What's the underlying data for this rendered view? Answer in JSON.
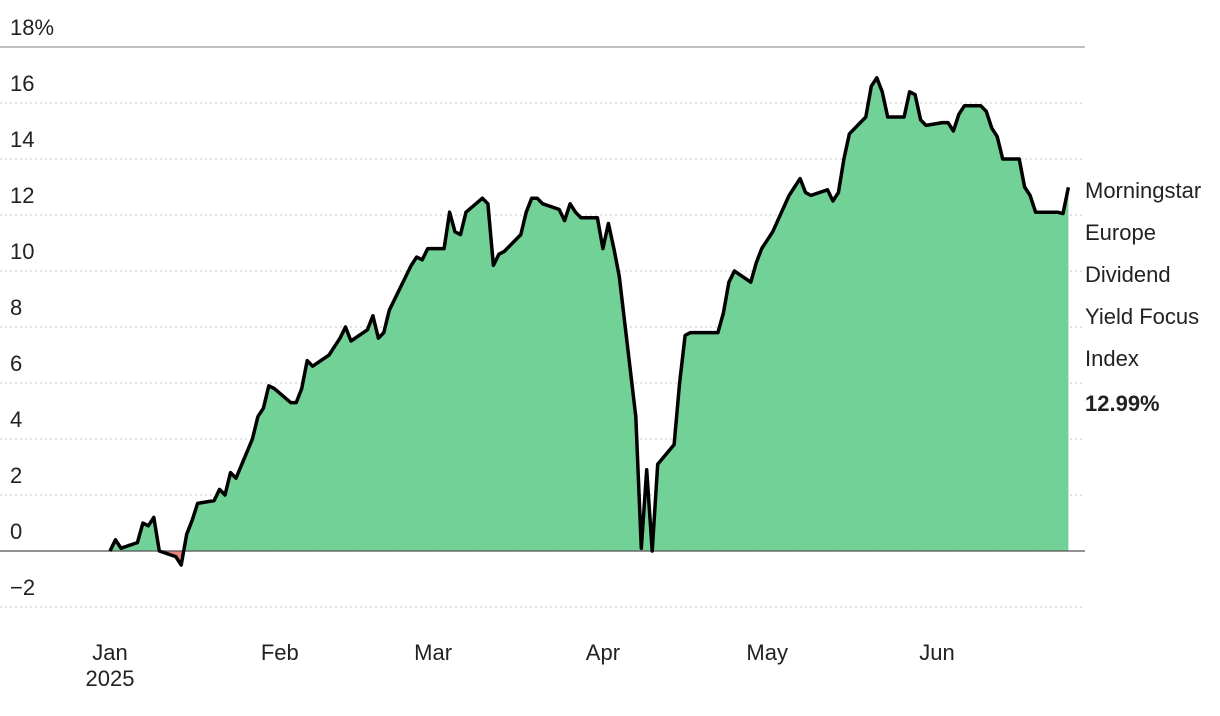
{
  "chart_data": {
    "type": "area",
    "x_year_label": "2025",
    "xticks": [
      {
        "value": "2025-01-01",
        "label": "Jan"
      },
      {
        "value": "2025-02-01",
        "label": "Feb"
      },
      {
        "value": "2025-03-01",
        "label": "Mar"
      },
      {
        "value": "2025-04-01",
        "label": "Apr"
      },
      {
        "value": "2025-05-01",
        "label": "May"
      },
      {
        "value": "2025-06-01",
        "label": "Jun"
      }
    ],
    "ylim": [
      -2,
      18
    ],
    "yticks": [
      {
        "value": -2,
        "label": "−2"
      },
      0,
      2,
      4,
      6,
      8,
      10,
      12,
      14,
      16,
      {
        "value": 18,
        "label": "18%"
      }
    ],
    "grid": true,
    "positive_color": "#72d196",
    "negative_color": "#e8837d",
    "line_color": "#000000",
    "x": [
      "2025-01-01",
      "2025-01-02",
      "2025-01-03",
      "2025-01-06",
      "2025-01-07",
      "2025-01-08",
      "2025-01-09",
      "2025-01-10",
      "2025-01-13",
      "2025-01-14",
      "2025-01-15",
      "2025-01-16",
      "2025-01-17",
      "2025-01-20",
      "2025-01-21",
      "2025-01-22",
      "2025-01-23",
      "2025-01-24",
      "2025-01-27",
      "2025-01-28",
      "2025-01-29",
      "2025-01-30",
      "2025-01-31",
      "2025-02-03",
      "2025-02-04",
      "2025-02-05",
      "2025-02-06",
      "2025-02-07",
      "2025-02-10",
      "2025-02-11",
      "2025-02-12",
      "2025-02-13",
      "2025-02-14",
      "2025-02-17",
      "2025-02-18",
      "2025-02-19",
      "2025-02-20",
      "2025-02-21",
      "2025-02-24",
      "2025-02-25",
      "2025-02-26",
      "2025-02-27",
      "2025-02-28",
      "2025-03-03",
      "2025-03-04",
      "2025-03-05",
      "2025-03-06",
      "2025-03-07",
      "2025-03-10",
      "2025-03-11",
      "2025-03-12",
      "2025-03-13",
      "2025-03-14",
      "2025-03-17",
      "2025-03-18",
      "2025-03-19",
      "2025-03-20",
      "2025-03-21",
      "2025-03-24",
      "2025-03-25",
      "2025-03-26",
      "2025-03-27",
      "2025-03-28",
      "2025-03-31",
      "2025-04-01",
      "2025-04-02",
      "2025-04-03",
      "2025-04-04",
      "2025-04-07",
      "2025-04-08",
      "2025-04-09",
      "2025-04-10",
      "2025-04-11",
      "2025-04-14",
      "2025-04-15",
      "2025-04-16",
      "2025-04-17",
      "2025-04-22",
      "2025-04-23",
      "2025-04-24",
      "2025-04-25",
      "2025-04-28",
      "2025-04-29",
      "2025-04-30",
      "2025-05-02",
      "2025-05-05",
      "2025-05-06",
      "2025-05-07",
      "2025-05-08",
      "2025-05-09",
      "2025-05-12",
      "2025-05-13",
      "2025-05-14",
      "2025-05-15",
      "2025-05-16",
      "2025-05-19",
      "2025-05-20",
      "2025-05-21",
      "2025-05-22",
      "2025-05-23",
      "2025-05-26",
      "2025-05-27",
      "2025-05-28",
      "2025-05-29",
      "2025-05-30",
      "2025-06-02",
      "2025-06-03",
      "2025-06-04",
      "2025-06-05",
      "2025-06-06",
      "2025-06-09",
      "2025-06-10",
      "2025-06-11",
      "2025-06-12",
      "2025-06-13",
      "2025-06-16",
      "2025-06-17",
      "2025-06-18",
      "2025-06-19",
      "2025-06-20",
      "2025-06-23",
      "2025-06-24",
      "2025-06-25"
    ],
    "series": [
      {
        "name": "Morningstar Europe Dividend Yield Focus Index",
        "end_label": "12.99%",
        "values": [
          0,
          0.4,
          0.1,
          0.3,
          1.0,
          0.9,
          1.2,
          0.0,
          -0.2,
          -0.5,
          0.6,
          1.1,
          1.7,
          1.8,
          2.2,
          2.0,
          2.8,
          2.6,
          4.0,
          4.8,
          5.1,
          5.9,
          5.8,
          5.3,
          5.3,
          5.8,
          6.8,
          6.6,
          7.0,
          7.3,
          7.6,
          8.0,
          7.5,
          7.9,
          8.4,
          7.6,
          7.8,
          8.6,
          9.8,
          10.2,
          10.5,
          10.4,
          10.8,
          10.8,
          12.1,
          11.4,
          11.3,
          12.1,
          12.6,
          12.4,
          10.2,
          10.6,
          10.7,
          11.3,
          12.1,
          12.6,
          12.6,
          12.4,
          12.2,
          11.8,
          12.4,
          12.1,
          11.9,
          11.9,
          10.8,
          11.7,
          10.8,
          9.8,
          4.8,
          0.1,
          2.9,
          0.0,
          3.1,
          3.8,
          6.0,
          7.7,
          7.8,
          7.8,
          8.5,
          9.6,
          10.0,
          9.6,
          10.3,
          10.8,
          11.4,
          12.7,
          13.0,
          13.3,
          12.8,
          12.7,
          12.9,
          12.5,
          12.8,
          14.0,
          14.9,
          15.5,
          16.6,
          16.9,
          16.4,
          15.5,
          15.5,
          16.4,
          16.3,
          15.4,
          15.2,
          15.3,
          15.3,
          15.0,
          15.6,
          15.9,
          15.9,
          15.7,
          15.1,
          14.8,
          14.0,
          14.0,
          13.0,
          12.7,
          12.1,
          12.1,
          12.1,
          12.05,
          12.99
        ]
      }
    ]
  }
}
